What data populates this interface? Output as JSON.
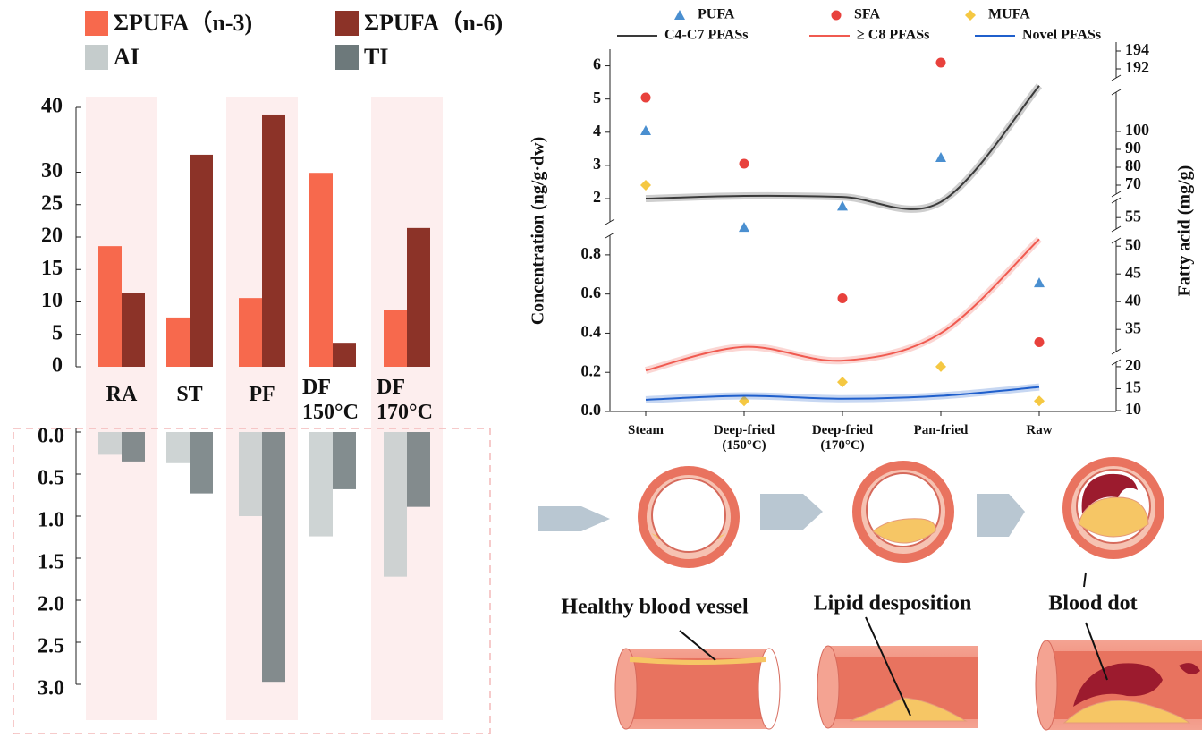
{
  "chart_data": [
    {
      "type": "bar",
      "categories": [
        "RA",
        "ST",
        "PF",
        "DF 150°C",
        "DF 170°C"
      ],
      "series": [
        {
          "name": "ΣPUFA（n-3)",
          "color": "#f7694d",
          "values": [
            18.6,
            7.6,
            10.6,
            29.9,
            8.7
          ]
        },
        {
          "name": "ΣPUFA（n-6)",
          "color": "#8c3328",
          "values": [
            11.4,
            32.7,
            38.9,
            3.7,
            21.4
          ]
        }
      ],
      "ylim": [
        0,
        40
      ],
      "yticks": [
        0,
        5,
        10,
        15,
        20,
        25,
        30,
        40
      ]
    },
    {
      "type": "bar",
      "series": [
        {
          "name": "AI",
          "color": "#c5cccc",
          "values": [
            0.27,
            0.37,
            1.0,
            1.24,
            1.72
          ]
        },
        {
          "name": "TI",
          "color": "#6d797b",
          "values": [
            0.35,
            0.73,
            2.97,
            0.68,
            0.89
          ]
        }
      ],
      "ylim": [
        0,
        3
      ],
      "y_inverted": true,
      "yticks": [
        {
          "value": 0,
          "label": "0.0"
        },
        0.5,
        {
          "value": 1,
          "label": "1.0"
        },
        1.5,
        {
          "value": 2,
          "label": "2.0"
        },
        2.5,
        {
          "value": 3,
          "label": "3.0"
        }
      ]
    },
    {
      "type": "line",
      "ylabel": "Concentration (ng/g·dw)",
      "y2label": "Fatty acid (mg/g)",
      "categories": [
        "Steam",
        "Deep-fried (150°C)",
        "Deep-fried (170°C)",
        "Pan-fried",
        "Raw"
      ],
      "y_segments": [
        {
          "ylim": [
            0,
            0.9
          ],
          "yticks": [
            {
              "value": 0,
              "label": "0.0"
            },
            0.2,
            0.4,
            0.6,
            0.8
          ]
        },
        {
          "ylim": [
            1.3,
            6.5
          ],
          "yticks": [
            2,
            3,
            4,
            5,
            6
          ]
        }
      ],
      "y2_segments": [
        {
          "ylim": [
            10,
            21
          ],
          "yticks": [
            10,
            15,
            20
          ]
        },
        {
          "ylim": [
            31,
            51
          ],
          "yticks": [
            35,
            40,
            45,
            50
          ]
        },
        {
          "ylim": [
            53,
            58
          ],
          "yticks": [
            55
          ]
        },
        {
          "ylim": [
            65,
            122
          ],
          "yticks": [
            70,
            80,
            90,
            100
          ]
        },
        {
          "ylim": [
            191,
            195
          ],
          "yticks": [
            192,
            194
          ]
        }
      ],
      "series": [
        {
          "name": "PUFA",
          "kind": "scatter",
          "marker": "triangle",
          "axis": "y2",
          "color": "#4a8fd0",
          "values": [
            100.5,
            53.3,
            57,
            85.5,
            43.4
          ]
        },
        {
          "name": "SFA",
          "kind": "scatter",
          "marker": "circle",
          "axis": "y2",
          "color": "#e8413c",
          "values": [
            119,
            82,
            40.6,
            192.7,
            32.7
          ]
        },
        {
          "name": "MUFA",
          "kind": "scatter",
          "marker": "diamond",
          "axis": "y2",
          "color": "#f5c842",
          "values": [
            70,
            12.2,
            16.5,
            20,
            12.2
          ]
        },
        {
          "name": "C4-C7 PFASs",
          "kind": "line",
          "color": "#3a3a3a",
          "values": [
            2.0,
            2.08,
            2.05,
            1.9,
            5.4
          ]
        },
        {
          "name": "≥ C8 PFASs",
          "kind": "line",
          "color": "#f05a50",
          "values": [
            0.21,
            0.33,
            0.26,
            0.4,
            0.88
          ]
        },
        {
          "name": "Novel PFASs",
          "kind": "line",
          "color": "#1f5fcc",
          "values": [
            0.06,
            0.08,
            0.065,
            0.08,
            0.125
          ]
        }
      ]
    }
  ],
  "diagram": {
    "labels": [
      "Healthy blood vessel",
      "Lipid desposition",
      "Blood dot"
    ]
  }
}
